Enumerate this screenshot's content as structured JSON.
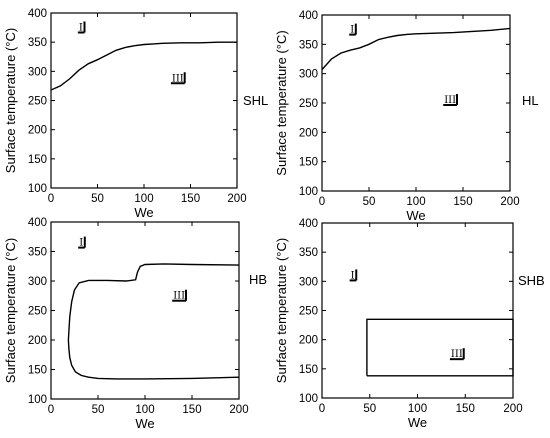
{
  "chart_data": [
    {
      "type": "line",
      "label": "SHL",
      "xlabel": "We",
      "ylabel": "Surface temperature (°C)",
      "xlim": [
        0,
        200
      ],
      "ylim": [
        100,
        400
      ],
      "xticks": [
        "0",
        "50",
        "100",
        "150",
        "200"
      ],
      "yticks": [
        "100",
        "150",
        "200",
        "250",
        "300",
        "350",
        "400"
      ],
      "region_labels": [
        {
          "text": "I",
          "x": 30,
          "y": 370
        },
        {
          "text": "III",
          "x": 130,
          "y": 283
        }
      ],
      "series": [
        {
          "x": [
            0,
            10,
            20,
            30,
            40,
            50,
            60,
            70,
            80,
            90,
            100,
            110,
            120,
            140,
            160,
            180,
            200
          ],
          "y": [
            268,
            275,
            287,
            302,
            313,
            320,
            328,
            336,
            341,
            344,
            346,
            347,
            348,
            349,
            349,
            350,
            350
          ]
        }
      ]
    },
    {
      "type": "line",
      "label": "HL",
      "xlabel": "We",
      "ylabel": "Surface temperature (°C)",
      "xlim": [
        0,
        200
      ],
      "ylim": [
        100,
        400
      ],
      "xticks": [
        "0",
        "50",
        "100",
        "150",
        "200"
      ],
      "yticks": [
        "100",
        "150",
        "200",
        "250",
        "300",
        "350",
        "400"
      ],
      "region_labels": [
        {
          "text": "I",
          "x": 30,
          "y": 370
        },
        {
          "text": "III",
          "x": 130,
          "y": 250
        }
      ],
      "series": [
        {
          "x": [
            0,
            10,
            20,
            30,
            40,
            50,
            60,
            70,
            80,
            90,
            100,
            120,
            140,
            160,
            180,
            200
          ],
          "y": [
            307,
            325,
            335,
            340,
            344,
            350,
            358,
            362,
            365,
            367,
            368,
            369,
            370,
            372,
            374,
            377
          ]
        }
      ]
    },
    {
      "type": "line",
      "label": "HB",
      "xlabel": "We",
      "ylabel": "Surface temperature (°C)",
      "xlim": [
        0,
        200
      ],
      "ylim": [
        100,
        400
      ],
      "xticks": [
        "0",
        "50",
        "100",
        "150",
        "200"
      ],
      "yticks": [
        "100",
        "150",
        "200",
        "250",
        "300",
        "350",
        "400"
      ],
      "region_labels": [
        {
          "text": "I",
          "x": 30,
          "y": 360
        },
        {
          "text": "III",
          "x": 130,
          "y": 270
        }
      ],
      "series": [
        {
          "x": [
            200,
            150,
            120,
            100,
            95,
            92,
            90,
            80,
            60,
            40,
            30,
            25,
            22,
            20,
            19,
            18.5,
            19,
            20,
            22,
            26,
            32,
            40,
            50,
            70,
            100,
            150,
            200
          ],
          "y": [
            327,
            328,
            329,
            328,
            325,
            315,
            302,
            300,
            301,
            301,
            297,
            285,
            265,
            240,
            215,
            200,
            185,
            170,
            157,
            146,
            140,
            137,
            135,
            134,
            134,
            135,
            137
          ]
        }
      ]
    },
    {
      "type": "line",
      "label": "SHB",
      "xlabel": "We",
      "ylabel": "Surface temperature (°C)",
      "xlim": [
        0,
        200
      ],
      "ylim": [
        100,
        400
      ],
      "xticks": [
        "0",
        "50",
        "100",
        "150",
        "200"
      ],
      "yticks": [
        "100",
        "150",
        "200",
        "250",
        "300",
        "350",
        "400"
      ],
      "region_labels": [
        {
          "text": "I",
          "x": 30,
          "y": 305
        },
        {
          "text": "III",
          "x": 135,
          "y": 170
        }
      ],
      "series": [
        {
          "x": [
            47,
            47,
            200,
            200,
            47
          ],
          "y": [
            138,
            235,
            235,
            138,
            138
          ]
        }
      ]
    }
  ]
}
